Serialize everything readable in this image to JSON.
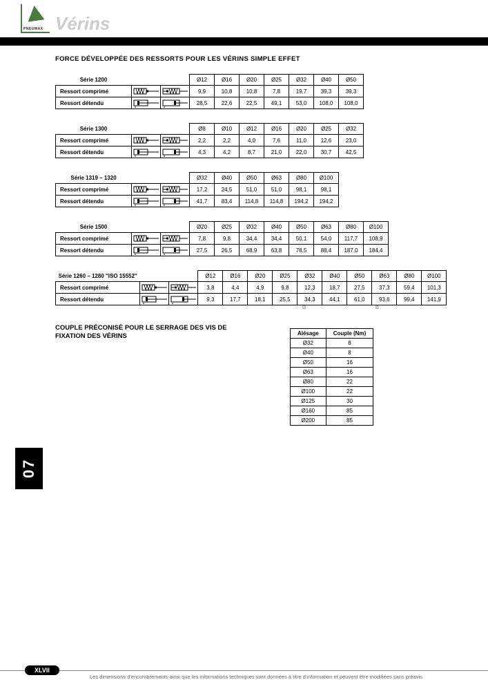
{
  "header": {
    "title": "Vérins",
    "logo_brand": "PNEUMAX"
  },
  "side_tab": "07",
  "section1": {
    "title": "FORCE DÉVELOPPÉE DES RESSORTS POUR LES VÉRINS SIMPLE EFFET",
    "row_labels": {
      "retracted": "Ressort comprimé",
      "extended": "Ressort détendu"
    },
    "tables": [
      {
        "series_label": "Série 1200",
        "headers": [
          "Ø12",
          "Ø16",
          "Ø20",
          "Ø25",
          "Ø32",
          "Ø40",
          "Ø50"
        ],
        "retracted": [
          "9,9",
          "10,8",
          "10,8",
          "7,8",
          "19,7",
          "39,3",
          "39,3"
        ],
        "extended": [
          "28,5",
          "22,6",
          "22,5",
          "49,1",
          "53,0",
          "108,0",
          "108,0"
        ]
      },
      {
        "series_label": "Série 1300",
        "headers": [
          "Ø8",
          "Ø10",
          "Ø12",
          "Ø16",
          "Ø20",
          "Ø25",
          "Ø32"
        ],
        "retracted": [
          "2,2",
          "2,2",
          "4,0",
          "7,6",
          "11,0",
          "12,6",
          "23,0"
        ],
        "extended": [
          "4,3",
          "4,2",
          "8,7",
          "21,0",
          "22,0",
          "30,7",
          "42,5"
        ]
      },
      {
        "series_label": "Série 1319 – 1320",
        "headers": [
          "Ø32",
          "Ø40",
          "Ø50",
          "Ø63",
          "Ø80",
          "Ø100"
        ],
        "retracted": [
          "17,2",
          "24,5",
          "51,0",
          "51,0",
          "98,1",
          "98,1"
        ],
        "extended": [
          "41,7",
          "83,4",
          "114,8",
          "114,8",
          "194,2",
          "194,2"
        ]
      },
      {
        "series_label": "Série 1500",
        "headers": [
          "Ø20",
          "Ø25",
          "Ø32",
          "Ø40",
          "Ø50",
          "Ø63",
          "Ø80",
          "Ø100"
        ],
        "retracted": [
          "7,8",
          "9,8",
          "34,4",
          "34,4",
          "50,1",
          "54,0",
          "117,7",
          "108,9"
        ],
        "extended": [
          "27,5",
          "26,5",
          "68,9",
          "63,8",
          "78,5",
          "88,4",
          "187,0",
          "184,4"
        ]
      },
      {
        "series_label": "Série 1260 – 1280 \"ISO 15552\"",
        "headers": [
          "Ø12",
          "Ø16",
          "Ø20",
          "Ø25",
          "Ø32",
          "Ø40",
          "Ø50",
          "Ø63",
          "Ø80",
          "Ø100"
        ],
        "retracted": [
          "3,8",
          "4,4",
          "4,9",
          "9,8",
          "12,3",
          "18,7",
          "27,5",
          "37,3",
          "59,4",
          "101,3"
        ],
        "extended": [
          "9,3",
          "17,7",
          "18,1",
          "25,5",
          "34,3",
          "44,1",
          "61,0",
          "93,6",
          "99,4",
          "141,9"
        ],
        "footnote_a": "Ø",
        "footnote_b": "Ø"
      }
    ]
  },
  "section2": {
    "title": "COUPLE PRÉCONISÉ POUR LE SERRAGE DES VIS DE FIXATION DES VÉRINS",
    "table": {
      "head": [
        "Alésage",
        "Couple (Nm)"
      ],
      "rows": [
        [
          "Ø32",
          "8"
        ],
        [
          "Ø40",
          "8"
        ],
        [
          "Ø50",
          "16"
        ],
        [
          "Ø63",
          "16"
        ],
        [
          "Ø80",
          "22"
        ],
        [
          "Ø100",
          "22"
        ],
        [
          "Ø125",
          "30"
        ],
        [
          "Ø160",
          "85"
        ],
        [
          "Ø200",
          "85"
        ]
      ]
    }
  },
  "footer": {
    "page": "XLVII",
    "disclaimer": "Les dimensions d'encombrements ainsi que les informations techniques sont données à titre d'information et peuvent être modifiées sans préavis."
  },
  "colors": {
    "accent": "#4a7d3a",
    "title_grey": "#cccccc"
  }
}
